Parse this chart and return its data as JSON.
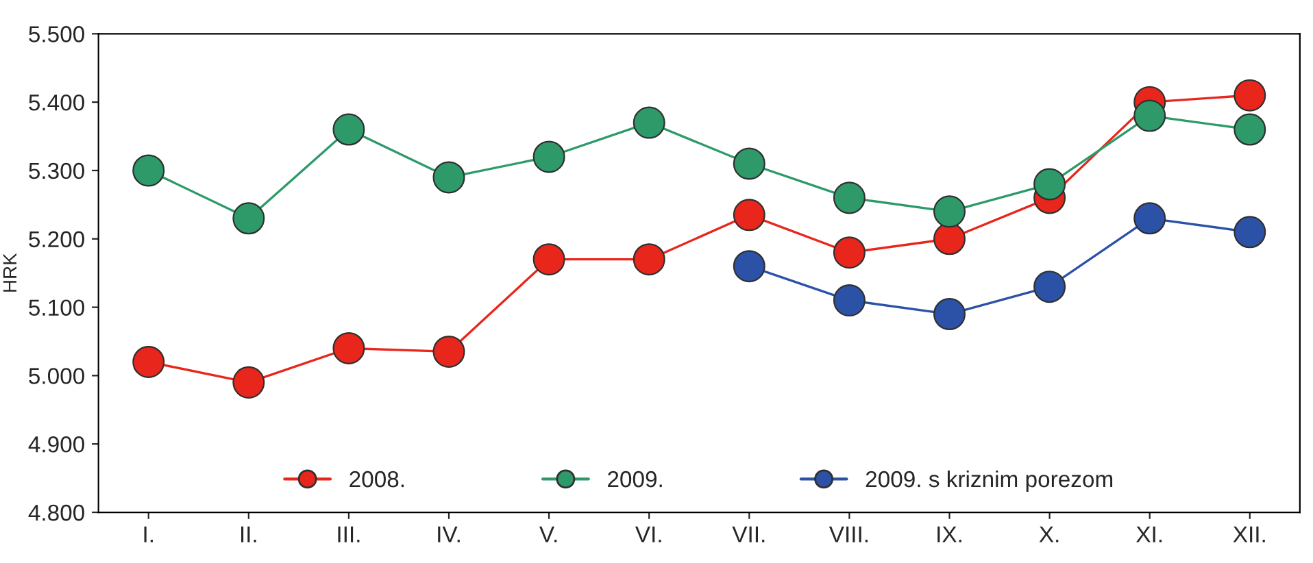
{
  "chart_data": {
    "type": "line",
    "ylabel": "HRK",
    "categories": [
      "I.",
      "II.",
      "III.",
      "IV.",
      "V.",
      "VI.",
      "VII.",
      "VIII.",
      "IX.",
      "X.",
      "XI.",
      "XII."
    ],
    "series": [
      {
        "name": "2008.",
        "color": "#e8261c",
        "values": [
          5.02,
          4.99,
          5.04,
          5.035,
          5.17,
          5.17,
          5.235,
          5.18,
          5.2,
          5.26,
          5.4,
          5.41
        ]
      },
      {
        "name": "2009.",
        "color": "#2e9a6a",
        "values": [
          5.3,
          5.23,
          5.36,
          5.29,
          5.32,
          5.37,
          5.31,
          5.26,
          5.24,
          5.28,
          5.38,
          5.36
        ]
      },
      {
        "name": "2009. s kriznim porezom",
        "color": "#2c52a8",
        "values": [
          null,
          null,
          null,
          null,
          null,
          null,
          5.16,
          5.11,
          5.09,
          5.13,
          5.23,
          5.21
        ]
      }
    ],
    "ylim": [
      4.8,
      5.5
    ],
    "yticks": [
      {
        "value": 4.8,
        "label": "4.800"
      },
      {
        "value": 4.9,
        "label": "4.900"
      },
      {
        "value": 5.0,
        "label": "5.000"
      },
      {
        "value": 5.1,
        "label": "5.100"
      },
      {
        "value": 5.2,
        "label": "5.200"
      },
      {
        "value": 5.3,
        "label": "5.300"
      },
      {
        "value": 5.4,
        "label": "5.400"
      },
      {
        "value": 5.5,
        "label": "5.500"
      }
    ],
    "grid": false,
    "legend": "bottom",
    "marker": "circle",
    "line_style": "solid"
  }
}
